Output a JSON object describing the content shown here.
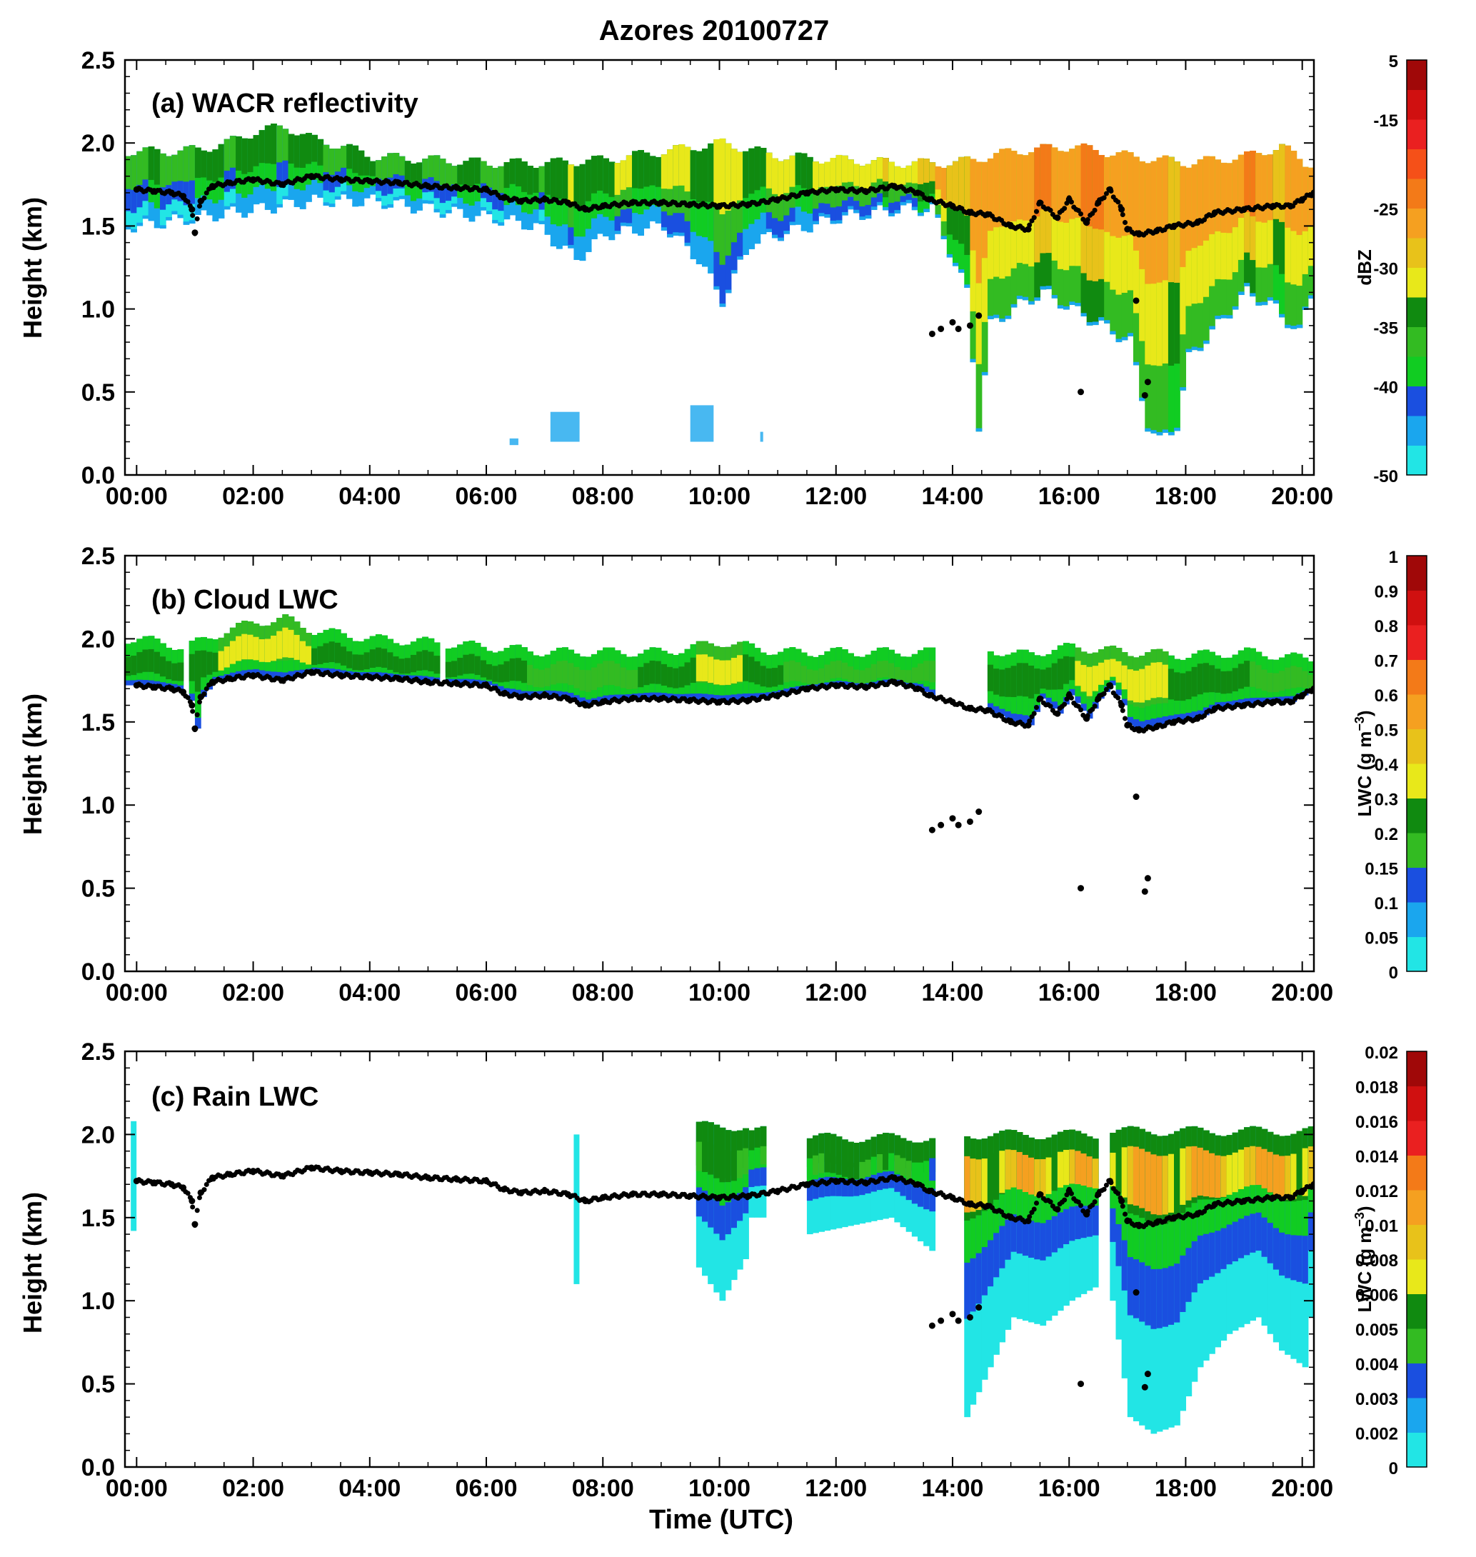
{
  "figure_title": "Azores 20100727",
  "shared_xlabel": "Time (UTC)",
  "colors": {
    "dbz_levels": [
      "#22e5e5",
      "#1aa6ee",
      "#1a4fe0",
      "#11cc22",
      "#33bb22",
      "#108a10",
      "#e8e81a",
      "#e8c21a",
      "#f5a020",
      "#f37a18",
      "#f55018",
      "#ea2020",
      "#d01010",
      "#a00808"
    ],
    "lwc_levels": [
      "#22e5e5",
      "#1aa6ee",
      "#1a4fe0",
      "#11cc22",
      "#33bb22",
      "#108a10",
      "#e8e81a",
      "#e8c21a",
      "#f5a020",
      "#f37a18",
      "#f55018",
      "#ea2020",
      "#d01010",
      "#a00808"
    ],
    "cloud_base_dots": "#000000"
  },
  "chart_data": [
    {
      "type": "heatmap",
      "panel_label": "(a) WACR  reflectivity",
      "xlabel": "",
      "ylabel": "Height (km)",
      "xlim": [
        -0.2,
        20.2
      ],
      "ylim": [
        0.0,
        2.5
      ],
      "x_ticks": [
        "00:00",
        "02:00",
        "04:00",
        "06:00",
        "08:00",
        "10:00",
        "12:00",
        "14:00",
        "16:00",
        "18:00",
        "20:00"
      ],
      "y_ticks": [
        "0.0",
        "0.5",
        "1.0",
        "1.5",
        "2.0",
        "2.5"
      ],
      "colorbar": {
        "label": "dBZ",
        "unit_superscript": "",
        "tick_labels": [
          "-50",
          "-40",
          "-35",
          "-30",
          "-25",
          "-15",
          "5"
        ],
        "tick_levels": [
          0,
          3,
          5,
          7,
          9,
          12,
          14
        ],
        "n_levels": 14
      },
      "cloud_top_km": [
        [
          0,
          1.95
        ],
        [
          0.5,
          1.95
        ],
        [
          1,
          1.96
        ],
        [
          1.5,
          2.0
        ],
        [
          2,
          2.07
        ],
        [
          2.5,
          2.1
        ],
        [
          3,
          2.02
        ],
        [
          3.5,
          1.98
        ],
        [
          4,
          1.92
        ],
        [
          5,
          1.9
        ],
        [
          6,
          1.88
        ],
        [
          7,
          1.88
        ],
        [
          8,
          1.9
        ],
        [
          9,
          1.95
        ],
        [
          10,
          2.0
        ],
        [
          11,
          1.92
        ],
        [
          12,
          1.9
        ],
        [
          13,
          1.88
        ],
        [
          14,
          1.88
        ],
        [
          15,
          1.95
        ],
        [
          16,
          1.98
        ],
        [
          17,
          1.92
        ],
        [
          18,
          1.88
        ],
        [
          19,
          1.92
        ],
        [
          19.6,
          1.98
        ],
        [
          20,
          1.88
        ]
      ],
      "echo_base_km": [
        [
          0,
          1.5
        ],
        [
          1,
          1.55
        ],
        [
          2,
          1.6
        ],
        [
          3,
          1.65
        ],
        [
          4,
          1.65
        ],
        [
          5,
          1.6
        ],
        [
          6,
          1.55
        ],
        [
          6.8,
          1.5
        ],
        [
          7.5,
          1.3
        ],
        [
          8,
          1.45
        ],
        [
          9,
          1.5
        ],
        [
          9.6,
          1.3
        ],
        [
          10,
          1.05
        ],
        [
          10.5,
          1.4
        ],
        [
          11,
          1.45
        ],
        [
          12,
          1.55
        ],
        [
          13,
          1.6
        ],
        [
          13.6,
          1.6
        ],
        [
          14.2,
          1.1
        ],
        [
          14.4,
          0.3
        ],
        [
          14.6,
          0.9
        ],
        [
          15,
          1.0
        ],
        [
          15.5,
          1.1
        ],
        [
          16,
          1.0
        ],
        [
          16.5,
          0.9
        ],
        [
          17,
          0.8
        ],
        [
          17.3,
          0.3
        ],
        [
          17.5,
          0.2
        ],
        [
          17.8,
          0.3
        ],
        [
          18,
          0.7
        ],
        [
          18.5,
          0.9
        ],
        [
          19,
          1.1
        ],
        [
          19.5,
          1.0
        ],
        [
          19.9,
          0.85
        ],
        [
          20.2,
          1.2
        ]
      ],
      "intensity_dBZ": [
        [
          0,
          -33
        ],
        [
          1,
          -31
        ],
        [
          2,
          -29
        ],
        [
          3,
          -30
        ],
        [
          4,
          -31
        ],
        [
          5,
          -32
        ],
        [
          6,
          -31
        ],
        [
          7,
          -29
        ],
        [
          8,
          -28
        ],
        [
          9,
          -27
        ],
        [
          10,
          -26
        ],
        [
          11,
          -26
        ],
        [
          12,
          -25
        ],
        [
          13,
          -24
        ],
        [
          14,
          -18
        ],
        [
          15,
          -15
        ],
        [
          16,
          -14
        ],
        [
          17,
          -16
        ],
        [
          18,
          -17
        ],
        [
          19,
          -15
        ],
        [
          20,
          -18
        ]
      ]
    },
    {
      "type": "heatmap",
      "panel_label": "(b) Cloud LWC",
      "xlabel": "",
      "ylabel": "Height (km)",
      "xlim": [
        -0.2,
        20.2
      ],
      "ylim": [
        0.0,
        2.5
      ],
      "x_ticks": [
        "00:00",
        "02:00",
        "04:00",
        "06:00",
        "08:00",
        "10:00",
        "12:00",
        "14:00",
        "16:00",
        "18:00",
        "20:00"
      ],
      "y_ticks": [
        "0.0",
        "0.5",
        "1.0",
        "1.5",
        "2.0",
        "2.5"
      ],
      "colorbar": {
        "label": "LWC (g m",
        "unit_superscript": "−3",
        "tick_labels": [
          "0",
          "0.05",
          "0.1",
          "0.15",
          "0.2",
          "0.3",
          "0.4",
          "0.5",
          "0.6",
          "0.7",
          "0.8",
          "0.9",
          "1"
        ],
        "tick_levels": [
          0,
          1,
          2,
          3,
          4,
          5,
          6,
          7,
          8,
          9,
          10,
          11,
          12
        ],
        "n_levels": 12
      },
      "cloud_top_km": [
        [
          0,
          2.0
        ],
        [
          0.8,
          1.95
        ],
        [
          1.5,
          2.05
        ],
        [
          2,
          2.1
        ],
        [
          2.5,
          2.12
        ],
        [
          3,
          2.05
        ],
        [
          4,
          2.0
        ],
        [
          5,
          1.98
        ],
        [
          6,
          1.95
        ],
        [
          7,
          1.92
        ],
        [
          8,
          1.92
        ],
        [
          9,
          1.92
        ],
        [
          10,
          1.98
        ],
        [
          11,
          1.92
        ],
        [
          12,
          1.92
        ],
        [
          13,
          1.92
        ],
        [
          13.6,
          1.92
        ],
        [
          14.5,
          1.95
        ],
        [
          15,
          1.9
        ],
        [
          16,
          1.95
        ],
        [
          17,
          1.92
        ],
        [
          18,
          1.9
        ],
        [
          19,
          1.92
        ],
        [
          20,
          1.88
        ]
      ],
      "gaps_hours": [
        [
          0.75,
          0.85
        ],
        [
          5.15,
          5.25
        ],
        [
          13.65,
          14.5
        ]
      ],
      "intensity_lwc": [
        [
          0,
          0.25
        ],
        [
          1,
          0.3
        ],
        [
          2,
          0.45
        ],
        [
          3,
          0.35
        ],
        [
          4,
          0.3
        ],
        [
          5,
          0.3
        ],
        [
          6,
          0.35
        ],
        [
          7,
          0.2
        ],
        [
          8,
          0.2
        ],
        [
          9,
          0.3
        ],
        [
          10,
          0.4
        ],
        [
          11,
          0.25
        ],
        [
          12,
          0.2
        ],
        [
          13,
          0.15
        ],
        [
          14,
          0.2
        ],
        [
          15,
          0.3
        ],
        [
          16,
          0.35
        ],
        [
          17,
          0.45
        ],
        [
          18,
          0.3
        ],
        [
          19,
          0.25
        ],
        [
          20,
          0.2
        ]
      ]
    },
    {
      "type": "heatmap",
      "panel_label": "(c) Rain LWC",
      "xlabel": "Time (UTC)",
      "ylabel": "Height (km)",
      "xlim": [
        -0.2,
        20.2
      ],
      "ylim": [
        0.0,
        2.5
      ],
      "x_ticks": [
        "00:00",
        "02:00",
        "04:00",
        "06:00",
        "08:00",
        "10:00",
        "12:00",
        "14:00",
        "16:00",
        "18:00",
        "20:00"
      ],
      "y_ticks": [
        "0.0",
        "0.5",
        "1.0",
        "1.5",
        "2.0",
        "2.5"
      ],
      "colorbar": {
        "label": "LWC (g m",
        "unit_superscript": "−3",
        "tick_labels": [
          "0",
          "0.002",
          "0.003",
          "0.004",
          "0.005",
          "0.006",
          "0.008",
          "0.01",
          "0.012",
          "0.014",
          "0.016",
          "0.018",
          "0.02"
        ],
        "tick_levels": [
          0,
          1,
          2,
          3,
          4,
          5,
          6,
          7,
          8,
          9,
          10,
          11,
          12
        ],
        "n_levels": 12
      },
      "rain_segments": [
        {
          "start": 9.6,
          "end": 10.4,
          "top": 2.05,
          "base": [
            [
              9.6,
              1.2
            ],
            [
              10.0,
              1.0
            ],
            [
              10.4,
              1.25
            ]
          ],
          "peak_lwc": 0.009
        },
        {
          "start": 10.5,
          "end": 10.75,
          "top": 2.02,
          "base": [
            [
              10.5,
              1.5
            ],
            [
              10.75,
              1.5
            ]
          ],
          "peak_lwc": 0.007
        },
        {
          "start": 11.5,
          "end": 12.9,
          "top": 1.98,
          "base": [
            [
              11.5,
              1.4
            ],
            [
              12.2,
              1.45
            ],
            [
              12.9,
              1.5
            ]
          ],
          "peak_lwc": 0.009
        },
        {
          "start": 12.9,
          "end": 13.6,
          "top": 1.98,
          "base": [
            [
              12.9,
              1.5
            ],
            [
              13.6,
              1.3
            ]
          ],
          "peak_lwc": 0.006
        },
        {
          "start": 14.2,
          "end": 16.5,
          "top": 2.0,
          "base": [
            [
              14.2,
              0.3
            ],
            [
              14.6,
              0.6
            ],
            [
              15.0,
              0.9
            ],
            [
              15.5,
              0.85
            ],
            [
              16.0,
              1.0
            ],
            [
              16.5,
              1.1
            ]
          ],
          "peak_lwc": 0.013
        },
        {
          "start": 16.7,
          "end": 20.2,
          "top": 2.02,
          "base": [
            [
              16.7,
              1.0
            ],
            [
              17.0,
              0.3
            ],
            [
              17.4,
              0.2
            ],
            [
              17.8,
              0.25
            ],
            [
              18.2,
              0.6
            ],
            [
              18.7,
              0.8
            ],
            [
              19.2,
              0.9
            ],
            [
              19.6,
              0.7
            ],
            [
              20.0,
              0.6
            ],
            [
              20.2,
              1.2
            ]
          ],
          "peak_lwc": 0.014
        }
      ],
      "thin_columns": [
        {
          "x": -0.1,
          "top": 2.08,
          "base": 1.42
        },
        {
          "x": 7.5,
          "top": 2.0,
          "base": 1.1
        }
      ]
    }
  ],
  "cloud_base_points_km": [
    [
      0.0,
      1.72
    ],
    [
      0.3,
      1.71
    ],
    [
      0.6,
      1.7
    ],
    [
      0.8,
      1.68
    ],
    [
      0.95,
      1.6
    ],
    [
      1.0,
      1.46
    ],
    [
      1.1,
      1.65
    ],
    [
      1.3,
      1.74
    ],
    [
      1.6,
      1.76
    ],
    [
      2.0,
      1.78
    ],
    [
      2.5,
      1.75
    ],
    [
      3.0,
      1.8
    ],
    [
      3.5,
      1.78
    ],
    [
      4.0,
      1.77
    ],
    [
      4.5,
      1.76
    ],
    [
      5.0,
      1.74
    ],
    [
      5.5,
      1.73
    ],
    [
      6.0,
      1.72
    ],
    [
      6.3,
      1.67
    ],
    [
      6.6,
      1.65
    ],
    [
      7.0,
      1.66
    ],
    [
      7.4,
      1.64
    ],
    [
      7.7,
      1.6
    ],
    [
      8.0,
      1.62
    ],
    [
      8.5,
      1.64
    ],
    [
      9.0,
      1.64
    ],
    [
      9.5,
      1.63
    ],
    [
      10.0,
      1.62
    ],
    [
      10.5,
      1.63
    ],
    [
      11.0,
      1.66
    ],
    [
      11.5,
      1.7
    ],
    [
      12.0,
      1.72
    ],
    [
      12.5,
      1.71
    ],
    [
      13.0,
      1.74
    ],
    [
      13.4,
      1.7
    ],
    [
      13.6,
      1.66
    ],
    [
      13.65,
      0.85
    ],
    [
      13.8,
      0.88
    ],
    [
      14.0,
      0.92
    ],
    [
      14.1,
      0.88
    ],
    [
      14.3,
      0.9
    ],
    [
      14.45,
      0.96
    ],
    [
      14.0,
      1.62
    ],
    [
      14.3,
      1.58
    ],
    [
      14.6,
      1.57
    ],
    [
      15.0,
      1.5
    ],
    [
      15.3,
      1.48
    ],
    [
      15.5,
      1.64
    ],
    [
      15.8,
      1.55
    ],
    [
      16.0,
      1.66
    ],
    [
      16.2,
      0.5
    ],
    [
      16.3,
      1.52
    ],
    [
      16.5,
      1.64
    ],
    [
      16.7,
      1.72
    ],
    [
      16.9,
      1.6
    ],
    [
      17.0,
      1.48
    ],
    [
      17.15,
      1.05
    ],
    [
      17.2,
      1.45
    ],
    [
      17.3,
      0.48
    ],
    [
      17.35,
      0.56
    ],
    [
      17.5,
      1.47
    ],
    [
      17.8,
      1.5
    ],
    [
      18.2,
      1.52
    ],
    [
      18.5,
      1.58
    ],
    [
      19.0,
      1.6
    ],
    [
      19.5,
      1.62
    ],
    [
      19.8,
      1.62
    ],
    [
      20.0,
      1.66
    ],
    [
      20.2,
      1.7
    ]
  ],
  "extra_sparse_echoes": [
    {
      "x0": 6.4,
      "x1": 6.55,
      "y0": 0.18,
      "y1": 0.22
    },
    {
      "x0": 7.1,
      "x1": 7.6,
      "y0": 0.2,
      "y1": 0.38
    },
    {
      "x0": 9.5,
      "x1": 9.9,
      "y0": 0.2,
      "y1": 0.42
    },
    {
      "x0": 10.7,
      "x1": 10.75,
      "y0": 0.2,
      "y1": 0.26
    }
  ]
}
